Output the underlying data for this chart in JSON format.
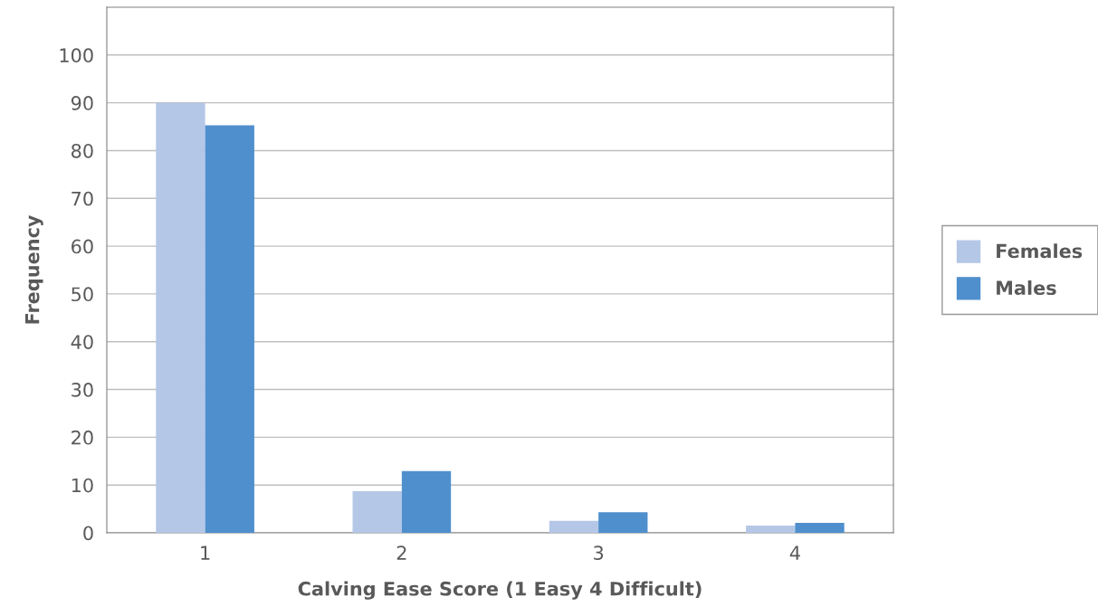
{
  "chart_data": {
    "type": "bar",
    "xlabel": "Calving Ease Score (1 Easy 4 Difficult)",
    "ylabel": "Frequency",
    "categories": [
      "1",
      "2",
      "3",
      "4"
    ],
    "series": [
      {
        "name": "Females",
        "color": "#b4c7e7",
        "values": [
          90.0,
          8.7,
          2.5,
          1.5
        ]
      },
      {
        "name": "Males",
        "color": "#4f8fcd",
        "values": [
          85.3,
          12.9,
          4.3,
          2.1
        ]
      }
    ],
    "ylim": [
      0,
      110
    ],
    "yticks": [
      0,
      10,
      20,
      30,
      40,
      50,
      60,
      70,
      80,
      90,
      100
    ],
    "grid": "y",
    "legend": "right"
  }
}
